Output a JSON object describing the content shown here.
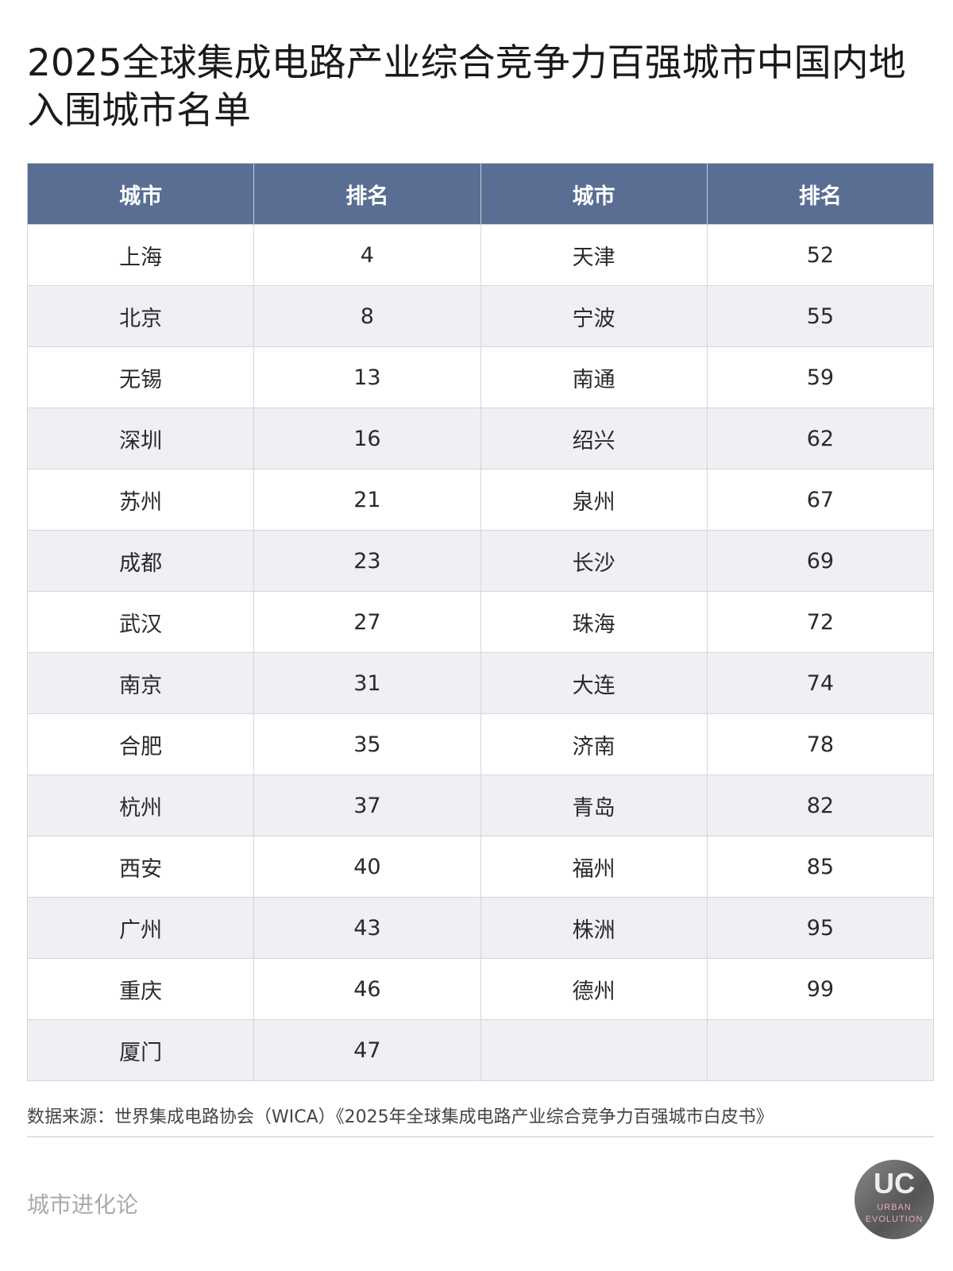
{
  "title": "2025全球集成电路产业综合竞争力百强城市中国内地入围城市名单",
  "table": {
    "headers": [
      "城市",
      "排名",
      "城市",
      "排名"
    ],
    "rows": [
      [
        "上海",
        "4",
        "天津",
        "52"
      ],
      [
        "北京",
        "8",
        "宁波",
        "55"
      ],
      [
        "无锡",
        "13",
        "南通",
        "59"
      ],
      [
        "深圳",
        "16",
        "绍兴",
        "62"
      ],
      [
        "苏州",
        "21",
        "泉州",
        "67"
      ],
      [
        "成都",
        "23",
        "长沙",
        "69"
      ],
      [
        "武汉",
        "27",
        "珠海",
        "72"
      ],
      [
        "南京",
        "31",
        "大连",
        "74"
      ],
      [
        "合肥",
        "35",
        "济南",
        "78"
      ],
      [
        "杭州",
        "37",
        "青岛",
        "82"
      ],
      [
        "西安",
        "40",
        "福州",
        "85"
      ],
      [
        "广州",
        "43",
        "株洲",
        "95"
      ],
      [
        "重庆",
        "46",
        "德州",
        "99"
      ],
      [
        "厦门",
        "47",
        "",
        ""
      ]
    ]
  },
  "source": "数据来源：世界集成电路协会（WICA）《2025年全球集成电路产业综合竞争力百强城市白皮书》",
  "brand": "城市进化论",
  "logo": {
    "mark": "UC",
    "line1": "URBAN",
    "line2": "EVOLUTION"
  },
  "colors": {
    "header_bg": "#5a6e94",
    "alt_row": "#eef0f4"
  }
}
